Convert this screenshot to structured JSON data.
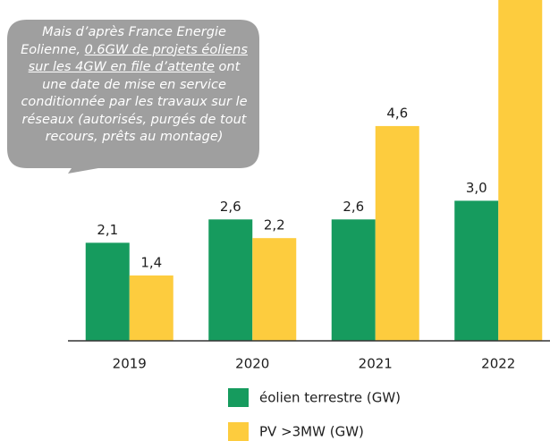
{
  "chart_data": {
    "type": "bar",
    "categories": [
      "2019",
      "2020",
      "2021",
      "2022"
    ],
    "series": [
      {
        "name": "éolien terrestre (GW)",
        "color": "#169b5e",
        "values": [
          2.1,
          2.6,
          2.6,
          3.0
        ],
        "value_labels": [
          "2,1",
          "2,6",
          "2,6",
          "3,0"
        ]
      },
      {
        "name": "PV >3MW (GW)",
        "color": "#fdcc3e",
        "values": [
          1.4,
          2.2,
          4.6,
          7.5
        ],
        "value_labels": [
          "1,4",
          "2,2",
          "4,6",
          null
        ]
      }
    ],
    "ylim": [
      0,
      7.3
    ],
    "annotation": {
      "parts": [
        {
          "text": "Mais d’après France Energie Eolienne, "
        },
        {
          "text": "0.6GW de projets éoliens sur les 4GW en file d’attente",
          "underline": true
        },
        {
          "text": " ont une date de mise en service conditionnée par les travaux sur le réseaux (autorisés, purgés de tout recours, prêts au montage)"
        }
      ]
    }
  }
}
